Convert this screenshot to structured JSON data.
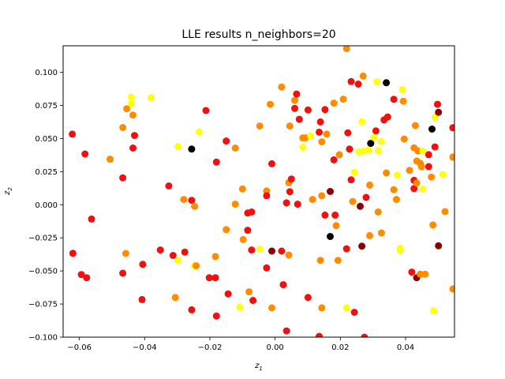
{
  "chart_data": {
    "type": "scatter",
    "title": "LLE results n_neighbors=20",
    "xlabel_main": "z",
    "xlabel_sub": "1",
    "ylabel_main": "z",
    "ylabel_sub": "2",
    "xlim": [
      -0.065,
      0.055
    ],
    "ylim": [
      -0.1,
      0.12
    ],
    "xticks": [
      -0.06,
      -0.04,
      -0.02,
      0.0,
      0.02,
      0.04
    ],
    "xtick_labels": [
      "−0.06",
      "−0.04",
      "−0.02",
      "0.00",
      "0.02",
      "0.04"
    ],
    "yticks": [
      -0.1,
      -0.075,
      -0.05,
      -0.025,
      0.0,
      0.025,
      0.05,
      0.075,
      0.1
    ],
    "ytick_labels": [
      "−0.100",
      "−0.075",
      "−0.050",
      "−0.025",
      "0.000",
      "0.025",
      "0.050",
      "0.075",
      "0.100"
    ],
    "grid": false,
    "legend": "none",
    "colormap": "hot",
    "colors": {
      "black": "#000000",
      "darkred": "#8b0000",
      "red": "#f01010",
      "orange": "#ff8c00",
      "amber": "#ffb000",
      "yellow": "#ffff10"
    },
    "points": [
      {
        "x": -0.0622,
        "y": 0.0533,
        "c": "red"
      },
      {
        "x": -0.062,
        "y": -0.0367,
        "c": "red"
      },
      {
        "x": -0.0583,
        "y": 0.0383,
        "c": "red"
      },
      {
        "x": -0.0594,
        "y": -0.0527,
        "c": "red"
      },
      {
        "x": -0.0578,
        "y": -0.0551,
        "c": "red"
      },
      {
        "x": -0.0563,
        "y": -0.0108,
        "c": "red"
      },
      {
        "x": -0.0506,
        "y": 0.0344,
        "c": "orange"
      },
      {
        "x": -0.0467,
        "y": 0.0583,
        "c": "orange"
      },
      {
        "x": -0.0455,
        "y": 0.0725,
        "c": "orange"
      },
      {
        "x": -0.0467,
        "y": 0.0203,
        "c": "red"
      },
      {
        "x": -0.0467,
        "y": -0.0517,
        "c": "red"
      },
      {
        "x": -0.0458,
        "y": -0.0368,
        "c": "orange"
      },
      {
        "x": -0.0441,
        "y": 0.0813,
        "c": "yellow"
      },
      {
        "x": -0.0441,
        "y": 0.0766,
        "c": "yellow"
      },
      {
        "x": -0.0436,
        "y": 0.0677,
        "c": "orange"
      },
      {
        "x": -0.0431,
        "y": 0.0523,
        "c": "red"
      },
      {
        "x": -0.0436,
        "y": 0.0428,
        "c": "red"
      },
      {
        "x": -0.0406,
        "y": -0.045,
        "c": "red"
      },
      {
        "x": -0.0408,
        "y": -0.0716,
        "c": "red"
      },
      {
        "x": -0.038,
        "y": 0.0808,
        "c": "yellow"
      },
      {
        "x": -0.0352,
        "y": -0.0342,
        "c": "red"
      },
      {
        "x": -0.0326,
        "y": 0.0142,
        "c": "red"
      },
      {
        "x": -0.0313,
        "y": -0.0383,
        "c": "red"
      },
      {
        "x": -0.0306,
        "y": -0.07,
        "c": "orange"
      },
      {
        "x": -0.0298,
        "y": 0.0438,
        "c": "yellow"
      },
      {
        "x": -0.0298,
        "y": -0.042,
        "c": "yellow"
      },
      {
        "x": -0.028,
        "y": 0.004,
        "c": "orange"
      },
      {
        "x": -0.0277,
        "y": -0.0358,
        "c": "red"
      },
      {
        "x": -0.0256,
        "y": 0.042,
        "c": "black"
      },
      {
        "x": -0.0256,
        "y": 0.0033,
        "c": "red"
      },
      {
        "x": -0.0256,
        "y": -0.0794,
        "c": "red"
      },
      {
        "x": -0.0247,
        "y": -0.0012,
        "c": "orange"
      },
      {
        "x": -0.0247,
        "y": -0.0461,
        "c": "yellow"
      },
      {
        "x": -0.0242,
        "y": -0.0461,
        "c": "orange"
      },
      {
        "x": -0.0233,
        "y": 0.055,
        "c": "yellow"
      },
      {
        "x": -0.0212,
        "y": 0.0711,
        "c": "red"
      },
      {
        "x": -0.0202,
        "y": -0.0551,
        "c": "red"
      },
      {
        "x": -0.018,
        "y": 0.0322,
        "c": "red"
      },
      {
        "x": -0.0183,
        "y": -0.0391,
        "c": "orange"
      },
      {
        "x": -0.0183,
        "y": -0.0551,
        "c": "red"
      },
      {
        "x": -0.018,
        "y": -0.0841,
        "c": "red"
      },
      {
        "x": -0.015,
        "y": 0.0481,
        "c": "red"
      },
      {
        "x": -0.015,
        "y": -0.0188,
        "c": "orange"
      },
      {
        "x": -0.0144,
        "y": -0.0673,
        "c": "red"
      },
      {
        "x": -0.0122,
        "y": 0.0428,
        "c": "orange"
      },
      {
        "x": -0.0122,
        "y": 0.0004,
        "c": "orange"
      },
      {
        "x": -0.0108,
        "y": -0.0773,
        "c": "yellow"
      },
      {
        "x": -0.01,
        "y": 0.0119,
        "c": "orange"
      },
      {
        "x": -0.0098,
        "y": -0.0263,
        "c": "orange"
      },
      {
        "x": -0.0084,
        "y": -0.0063,
        "c": "red"
      },
      {
        "x": -0.0084,
        "y": -0.0193,
        "c": "red"
      },
      {
        "x": -0.008,
        "y": -0.0658,
        "c": "orange"
      },
      {
        "x": -0.0072,
        "y": -0.0055,
        "c": "red"
      },
      {
        "x": -0.0072,
        "y": -0.0342,
        "c": "red"
      },
      {
        "x": -0.0068,
        "y": -0.0723,
        "c": "red"
      },
      {
        "x": -0.0047,
        "y": 0.0594,
        "c": "orange"
      },
      {
        "x": -0.0047,
        "y": -0.0337,
        "c": "yellow"
      },
      {
        "x": -0.0026,
        "y": 0.0104,
        "c": "orange"
      },
      {
        "x": -0.0026,
        "y": 0.0068,
        "c": "red"
      },
      {
        "x": -0.0026,
        "y": -0.0477,
        "c": "red"
      },
      {
        "x": -0.0015,
        "y": 0.0758,
        "c": "orange"
      },
      {
        "x": -0.001,
        "y": 0.0309,
        "c": "red"
      },
      {
        "x": -0.001,
        "y": -0.035,
        "c": "darkred"
      },
      {
        "x": -0.001,
        "y": -0.0779,
        "c": "orange"
      },
      {
        "x": 0.002,
        "y": 0.0889,
        "c": "orange"
      },
      {
        "x": 0.002,
        "y": -0.035,
        "c": "red"
      },
      {
        "x": 0.0025,
        "y": -0.0604,
        "c": "red"
      },
      {
        "x": 0.0035,
        "y": 0.0014,
        "c": "red"
      },
      {
        "x": 0.0035,
        "y": -0.0953,
        "c": "red"
      },
      {
        "x": 0.0042,
        "y": 0.0167,
        "c": "orange"
      },
      {
        "x": 0.0042,
        "y": -0.038,
        "c": "orange"
      },
      {
        "x": 0.0045,
        "y": 0.0099,
        "c": "red"
      },
      {
        "x": 0.0045,
        "y": 0.0594,
        "c": "orange"
      },
      {
        "x": 0.005,
        "y": 0.0194,
        "c": "red"
      },
      {
        "x": 0.006,
        "y": 0.0788,
        "c": "orange"
      },
      {
        "x": 0.006,
        "y": 0.0727,
        "c": "red"
      },
      {
        "x": 0.0066,
        "y": 0.0836,
        "c": "red"
      },
      {
        "x": 0.0069,
        "y": 0.0004,
        "c": "red"
      },
      {
        "x": 0.0074,
        "y": 0.0645,
        "c": "red"
      },
      {
        "x": 0.0085,
        "y": 0.0433,
        "c": "yellow"
      },
      {
        "x": 0.0085,
        "y": 0.0505,
        "c": "orange"
      },
      {
        "x": 0.0093,
        "y": 0.0505,
        "c": "orange"
      },
      {
        "x": 0.0101,
        "y": 0.0716,
        "c": "red"
      },
      {
        "x": 0.0101,
        "y": -0.07,
        "c": "red"
      },
      {
        "x": 0.0109,
        "y": 0.052,
        "c": "yellow"
      },
      {
        "x": 0.0115,
        "y": 0.004,
        "c": "orange"
      },
      {
        "x": 0.0135,
        "y": 0.0548,
        "c": "red"
      },
      {
        "x": 0.0135,
        "y": -0.0994,
        "c": "red"
      },
      {
        "x": 0.0139,
        "y": 0.0625,
        "c": "red"
      },
      {
        "x": 0.0139,
        "y": -0.042,
        "c": "orange"
      },
      {
        "x": 0.0143,
        "y": 0.0475,
        "c": "orange"
      },
      {
        "x": 0.0143,
        "y": 0.0068,
        "c": "orange"
      },
      {
        "x": 0.0143,
        "y": -0.0779,
        "c": "orange"
      },
      {
        "x": 0.0153,
        "y": 0.0718,
        "c": "red"
      },
      {
        "x": 0.0153,
        "y": -0.0078,
        "c": "red"
      },
      {
        "x": 0.0158,
        "y": 0.0533,
        "c": "orange"
      },
      {
        "x": 0.0169,
        "y": 0.01,
        "c": "darkred"
      },
      {
        "x": 0.0169,
        "y": -0.024,
        "c": "black"
      },
      {
        "x": 0.018,
        "y": 0.0767,
        "c": "orange"
      },
      {
        "x": 0.018,
        "y": 0.0339,
        "c": "red"
      },
      {
        "x": 0.0184,
        "y": -0.0078,
        "c": "red"
      },
      {
        "x": 0.0187,
        "y": -0.0158,
        "c": "orange"
      },
      {
        "x": 0.0193,
        "y": -0.042,
        "c": "orange"
      },
      {
        "x": 0.0197,
        "y": 0.0378,
        "c": "orange"
      },
      {
        "x": 0.0209,
        "y": 0.0797,
        "c": "orange"
      },
      {
        "x": 0.0219,
        "y": 0.118,
        "c": "orange"
      },
      {
        "x": 0.0219,
        "y": -0.0333,
        "c": "red"
      },
      {
        "x": 0.0219,
        "y": -0.0779,
        "c": "yellow"
      },
      {
        "x": 0.0223,
        "y": 0.0543,
        "c": "red"
      },
      {
        "x": 0.0228,
        "y": 0.042,
        "c": "red"
      },
      {
        "x": 0.0233,
        "y": 0.093,
        "c": "red"
      },
      {
        "x": 0.0233,
        "y": 0.0188,
        "c": "red"
      },
      {
        "x": 0.0238,
        "y": 0.0024,
        "c": "orange"
      },
      {
        "x": 0.0243,
        "y": 0.0244,
        "c": "yellow"
      },
      {
        "x": 0.0243,
        "y": -0.0812,
        "c": "red"
      },
      {
        "x": 0.0255,
        "y": 0.0911,
        "c": "red"
      },
      {
        "x": 0.0257,
        "y": 0.0398,
        "c": "yellow"
      },
      {
        "x": 0.0261,
        "y": -0.0012,
        "c": "darkred"
      },
      {
        "x": 0.0266,
        "y": 0.0626,
        "c": "yellow"
      },
      {
        "x": 0.0266,
        "y": -0.0313,
        "c": "darkred"
      },
      {
        "x": 0.027,
        "y": 0.0971,
        "c": "orange"
      },
      {
        "x": 0.027,
        "y": 0.0405,
        "c": "yellow"
      },
      {
        "x": 0.0274,
        "y": -0.1,
        "c": "red"
      },
      {
        "x": 0.0279,
        "y": 0.0055,
        "c": "red"
      },
      {
        "x": 0.0286,
        "y": 0.0412,
        "c": "yellow"
      },
      {
        "x": 0.029,
        "y": 0.0148,
        "c": "orange"
      },
      {
        "x": 0.029,
        "y": -0.0233,
        "c": "orange"
      },
      {
        "x": 0.0293,
        "y": 0.0463,
        "c": "black"
      },
      {
        "x": 0.0303,
        "y": 0.0508,
        "c": "yellow"
      },
      {
        "x": 0.0309,
        "y": 0.0557,
        "c": "red"
      },
      {
        "x": 0.0312,
        "y": 0.0928,
        "c": "yellow"
      },
      {
        "x": 0.0316,
        "y": 0.0408,
        "c": "yellow"
      },
      {
        "x": 0.0316,
        "y": -0.0055,
        "c": "orange"
      },
      {
        "x": 0.0325,
        "y": 0.0478,
        "c": "yellow"
      },
      {
        "x": 0.0326,
        "y": -0.0213,
        "c": "orange"
      },
      {
        "x": 0.0334,
        "y": 0.064,
        "c": "red"
      },
      {
        "x": 0.0341,
        "y": 0.0921,
        "c": "black"
      },
      {
        "x": 0.0341,
        "y": 0.024,
        "c": "orange"
      },
      {
        "x": 0.0345,
        "y": 0.0663,
        "c": "red"
      },
      {
        "x": 0.0364,
        "y": 0.0796,
        "c": "red"
      },
      {
        "x": 0.0364,
        "y": 0.0113,
        "c": "orange"
      },
      {
        "x": 0.0372,
        "y": 0.004,
        "c": "orange"
      },
      {
        "x": 0.0375,
        "y": 0.0223,
        "c": "yellow"
      },
      {
        "x": 0.0383,
        "y": -0.0329,
        "c": "yellow"
      },
      {
        "x": 0.0383,
        "y": -0.0344,
        "c": "yellow"
      },
      {
        "x": 0.039,
        "y": 0.087,
        "c": "yellow"
      },
      {
        "x": 0.0393,
        "y": 0.0781,
        "c": "orange"
      },
      {
        "x": 0.0396,
        "y": 0.0496,
        "c": "orange"
      },
      {
        "x": 0.0412,
        "y": 0.0259,
        "c": "orange"
      },
      {
        "x": 0.0419,
        "y": -0.0509,
        "c": "red"
      },
      {
        "x": 0.0426,
        "y": 0.043,
        "c": "orange"
      },
      {
        "x": 0.0426,
        "y": 0.0184,
        "c": "red"
      },
      {
        "x": 0.0426,
        "y": 0.0122,
        "c": "red"
      },
      {
        "x": 0.043,
        "y": 0.0598,
        "c": "orange"
      },
      {
        "x": 0.0434,
        "y": 0.033,
        "c": "orange"
      },
      {
        "x": 0.0434,
        "y": 0.0164,
        "c": "orange"
      },
      {
        "x": 0.0434,
        "y": -0.0551,
        "c": "darkred"
      },
      {
        "x": 0.0438,
        "y": 0.0406,
        "c": "orange"
      },
      {
        "x": 0.0445,
        "y": 0.0313,
        "c": "orange"
      },
      {
        "x": 0.0445,
        "y": -0.0524,
        "c": "orange"
      },
      {
        "x": 0.0449,
        "y": 0.0287,
        "c": "orange"
      },
      {
        "x": 0.0453,
        "y": 0.0405,
        "c": "yellow"
      },
      {
        "x": 0.0453,
        "y": 0.0119,
        "c": "yellow"
      },
      {
        "x": 0.046,
        "y": -0.0524,
        "c": "orange"
      },
      {
        "x": 0.0471,
        "y": 0.0378,
        "c": "red"
      },
      {
        "x": 0.0471,
        "y": 0.0288,
        "c": "red"
      },
      {
        "x": 0.0479,
        "y": 0.0209,
        "c": "orange"
      },
      {
        "x": 0.0481,
        "y": 0.0571,
        "c": "black"
      },
      {
        "x": 0.0484,
        "y": -0.0153,
        "c": "orange"
      },
      {
        "x": 0.0486,
        "y": -0.08,
        "c": "yellow"
      },
      {
        "x": 0.049,
        "y": 0.0436,
        "c": "red"
      },
      {
        "x": 0.049,
        "y": 0.066,
        "c": "yellow"
      },
      {
        "x": 0.0498,
        "y": 0.0758,
        "c": "red"
      },
      {
        "x": 0.0501,
        "y": 0.0698,
        "c": "darkred"
      },
      {
        "x": 0.0501,
        "y": -0.031,
        "c": "darkred"
      },
      {
        "x": 0.0514,
        "y": 0.0228,
        "c": "yellow"
      },
      {
        "x": 0.0521,
        "y": -0.0052,
        "c": "orange"
      },
      {
        "x": 0.0545,
        "y": 0.0581,
        "c": "red"
      },
      {
        "x": 0.0545,
        "y": 0.036,
        "c": "orange"
      },
      {
        "x": 0.0545,
        "y": -0.0636,
        "c": "orange"
      }
    ]
  }
}
